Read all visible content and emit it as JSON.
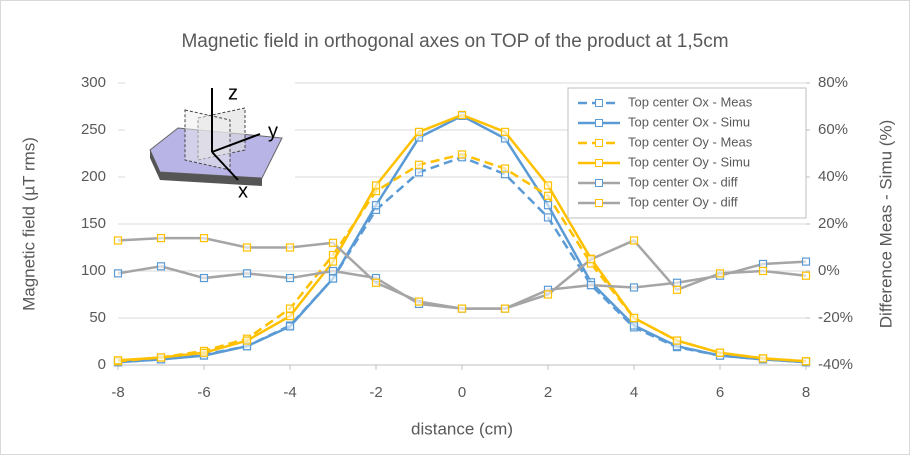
{
  "chart_data": {
    "type": "line",
    "title": "Magnetic field in orthogonal axes on TOP of the product at 1,5cm",
    "x_label": "distance (cm)",
    "y_label": "Magnetic field (µT rms)",
    "y2_label": "Difference Meas - Simu (%)",
    "inset_labels": [
      "z",
      "y",
      "x"
    ],
    "x": [
      -8,
      -7,
      -6,
      -5,
      -4,
      -3,
      -2,
      -1,
      0,
      1,
      2,
      3,
      4,
      5,
      6,
      7,
      8
    ],
    "xlim": [
      -8,
      8
    ],
    "xticks": [
      -8,
      -6,
      -4,
      -2,
      0,
      2,
      4,
      6,
      8
    ],
    "ylim": [
      0,
      300
    ],
    "yticks": [
      0,
      50,
      100,
      150,
      200,
      250,
      300
    ],
    "y2lim": [
      -40,
      80
    ],
    "y2ticks": [
      {
        "value": -40,
        "label": "-40%"
      },
      {
        "value": -20,
        "label": "-20%"
      },
      {
        "value": 0,
        "label": "0%"
      },
      {
        "value": 20,
        "label": "20%"
      },
      {
        "value": 40,
        "label": "40%"
      },
      {
        "value": 60,
        "label": "60%"
      },
      {
        "value": 80,
        "label": "80%"
      }
    ],
    "grid": true,
    "legend": "top-right",
    "series": [
      {
        "name": "Top center Ox - Meas",
        "color": "#5b9bd5",
        "marker_color": "#5b9bd5",
        "dash": true,
        "values": [
          3,
          6,
          11,
          20,
          42,
          92,
          165,
          205,
          221,
          203,
          157,
          85,
          40,
          19,
          10,
          6,
          3
        ]
      },
      {
        "name": "Top center Ox - Simu",
        "color": "#5b9bd5",
        "marker_color": "#5b9bd5",
        "dash": false,
        "values": [
          3,
          6,
          10,
          20,
          41,
          92,
          170,
          242,
          265,
          241,
          170,
          88,
          42,
          20,
          10,
          6,
          3
        ]
      },
      {
        "name": "Top center Oy - Meas",
        "color": "#ffc000",
        "marker_color": "#ffc000",
        "dash": true,
        "values": [
          4,
          8,
          15,
          28,
          60,
          117,
          185,
          213,
          224,
          209,
          180,
          108,
          50,
          26,
          13,
          7,
          4
        ]
      },
      {
        "name": "Top center Oy - Simu",
        "color": "#ffc000",
        "marker_color": "#ffc000",
        "dash": false,
        "values": [
          5,
          8,
          13,
          26,
          52,
          110,
          191,
          248,
          266,
          248,
          191,
          113,
          50,
          26,
          13,
          7,
          4
        ]
      },
      {
        "name": "Top center Ox - diff",
        "color": "#a5a5a5",
        "marker_color": "#5b9bd5",
        "dash": false,
        "axis": "y2",
        "values": [
          -1,
          2,
          -3,
          -1,
          -3,
          0,
          -3,
          -14,
          -16,
          -16,
          -8,
          -6,
          -7,
          -5,
          -2,
          3,
          4
        ]
      },
      {
        "name": "Top center Oy - diff",
        "color": "#a5a5a5",
        "marker_color": "#ffc000",
        "dash": false,
        "axis": "y2",
        "values": [
          13,
          14,
          14,
          10,
          10,
          12,
          -5,
          -13,
          -16,
          -16,
          -10,
          5,
          13,
          -8,
          -1,
          0,
          -2
        ]
      }
    ]
  }
}
